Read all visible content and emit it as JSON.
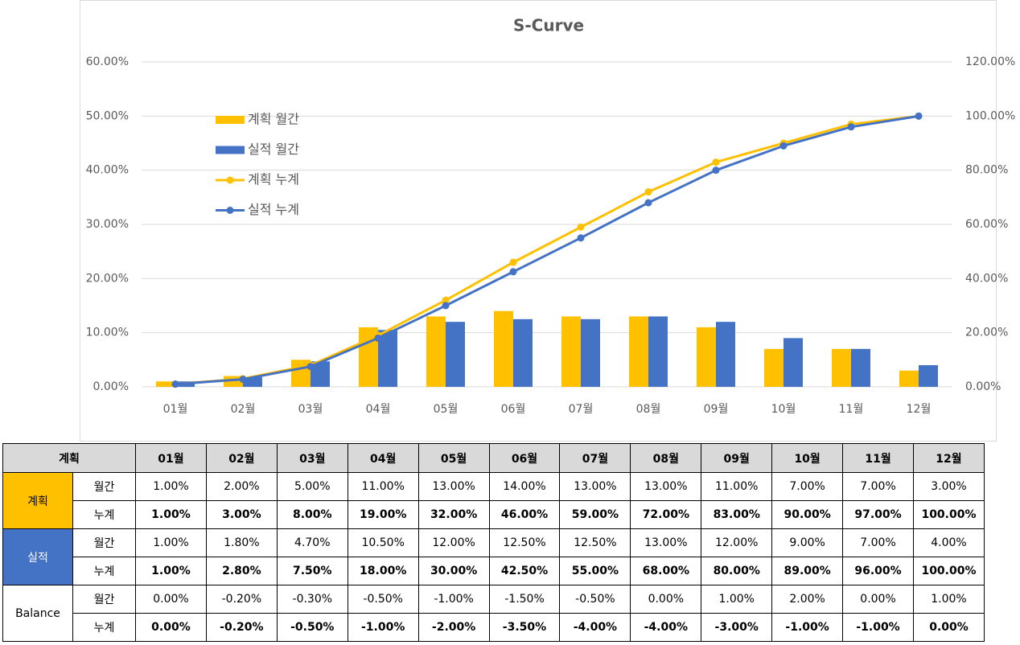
{
  "chart_data": {
    "type": "bar",
    "title": "S-Curve",
    "categories": [
      "01월",
      "02월",
      "03월",
      "04월",
      "05월",
      "06월",
      "07월",
      "08월",
      "09월",
      "10월",
      "11월",
      "12월"
    ],
    "series": [
      {
        "name": "계획 월간",
        "type": "bar",
        "color": "#FFC000",
        "values": [
          1,
          2,
          5,
          11,
          13,
          14,
          13,
          13,
          11,
          7,
          7,
          3
        ]
      },
      {
        "name": "실적 월간",
        "type": "bar",
        "color": "#4472C4",
        "values": [
          1,
          1.8,
          4.7,
          10.5,
          12,
          12.5,
          12.5,
          13,
          12,
          9,
          7,
          4
        ]
      },
      {
        "name": "계획 누계",
        "type": "line",
        "axis": "y2",
        "color": "#FFC000",
        "values": [
          1,
          3,
          8,
          19,
          32,
          46,
          59,
          72,
          83,
          90,
          97,
          100
        ]
      },
      {
        "name": "실적 누계",
        "type": "line",
        "axis": "y2",
        "color": "#4472C4",
        "values": [
          1,
          2.8,
          7.5,
          18,
          30,
          42.5,
          55,
          68,
          80,
          89,
          96,
          100
        ]
      }
    ],
    "ylim": [
      0,
      60
    ],
    "yticks": [
      {
        "value": 0,
        "label": "0.00%"
      },
      {
        "value": 10,
        "label": "10.00%"
      },
      {
        "value": 20,
        "label": "20.00%"
      },
      {
        "value": 30,
        "label": "30.00%"
      },
      {
        "value": 40,
        "label": "40.00%"
      },
      {
        "value": 50,
        "label": "50.00%"
      },
      {
        "value": 60,
        "label": "60.00%"
      }
    ],
    "y2lim": [
      0,
      120
    ],
    "y2ticks": [
      {
        "value": 0,
        "label": "0.00%"
      },
      {
        "value": 20,
        "label": "20.00%"
      },
      {
        "value": 40,
        "label": "40.00%"
      },
      {
        "value": 60,
        "label": "60.00%"
      },
      {
        "value": 80,
        "label": "80.00%"
      },
      {
        "value": 100,
        "label": "100.00%"
      },
      {
        "value": 120,
        "label": "120.00%"
      }
    ],
    "grid": true,
    "legend": "upper left"
  },
  "table": {
    "corner": "계획",
    "groups": [
      {
        "name": "계획",
        "rows": [
          {
            "label": "월간",
            "cells": [
              "1.00%",
              "2.00%",
              "5.00%",
              "11.00%",
              "13.00%",
              "14.00%",
              "13.00%",
              "13.00%",
              "11.00%",
              "7.00%",
              "7.00%",
              "3.00%"
            ]
          },
          {
            "label": "누계",
            "cells": [
              "1.00%",
              "3.00%",
              "8.00%",
              "19.00%",
              "32.00%",
              "46.00%",
              "59.00%",
              "72.00%",
              "83.00%",
              "90.00%",
              "97.00%",
              "100.00%"
            ]
          }
        ]
      },
      {
        "name": "실적",
        "rows": [
          {
            "label": "월간",
            "cells": [
              "1.00%",
              "1.80%",
              "4.70%",
              "10.50%",
              "12.00%",
              "12.50%",
              "12.50%",
              "13.00%",
              "12.00%",
              "9.00%",
              "7.00%",
              "4.00%"
            ]
          },
          {
            "label": "누계",
            "cells": [
              "1.00%",
              "2.80%",
              "7.50%",
              "18.00%",
              "30.00%",
              "42.50%",
              "55.00%",
              "68.00%",
              "80.00%",
              "89.00%",
              "96.00%",
              "100.00%"
            ]
          }
        ]
      },
      {
        "name": "Balance",
        "rows": [
          {
            "label": "월간",
            "cells": [
              "0.00%",
              "-0.20%",
              "-0.30%",
              "-0.50%",
              "-1.00%",
              "-1.50%",
              "-0.50%",
              "0.00%",
              "1.00%",
              "2.00%",
              "0.00%",
              "1.00%"
            ]
          },
          {
            "label": "누계",
            "cells": [
              "0.00%",
              "-0.20%",
              "-0.50%",
              "-1.00%",
              "-2.00%",
              "-3.50%",
              "-4.00%",
              "-4.00%",
              "-3.00%",
              "-1.00%",
              "-1.00%",
              "0.00%"
            ]
          }
        ]
      }
    ]
  }
}
